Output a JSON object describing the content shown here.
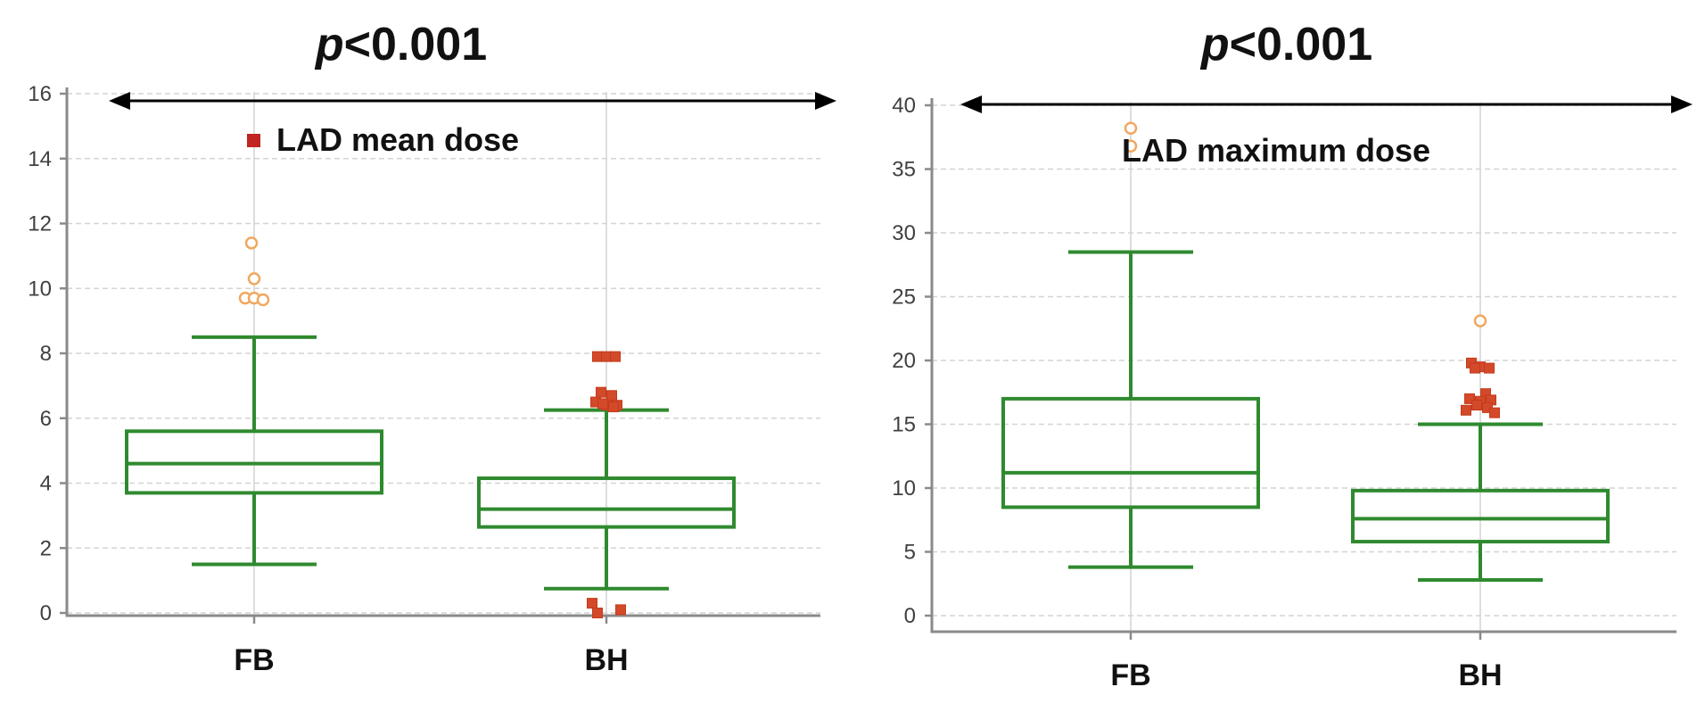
{
  "figure": {
    "panels_count": 2
  },
  "chart_data": [
    {
      "type": "box",
      "title": "p<0.001",
      "title_italic_part": "p",
      "title_rest": "<0.001",
      "legend_label": "LAD mean dose",
      "legend_marker": "filled-square",
      "ylim": [
        0,
        16
      ],
      "yticks": [
        0,
        2,
        4,
        6,
        8,
        10,
        12,
        14,
        16
      ],
      "categories": [
        "FB",
        "BH"
      ],
      "grid": true,
      "colors": {
        "box": "#2f8a2f",
        "outlier_open": "#f0a860",
        "outlier_filled": "#d24a2a",
        "legend_marker": "#c0251f"
      },
      "boxes": [
        {
          "name": "FB",
          "whisker_low": 1.5,
          "q1": 3.7,
          "median": 4.6,
          "q3": 5.6,
          "whisker_high": 8.5,
          "outliers_open": [
            11.4,
            10.3,
            9.7,
            9.7,
            9.65
          ],
          "outliers_filled": []
        },
        {
          "name": "BH",
          "whisker_low": 0.75,
          "q1": 2.65,
          "median": 3.2,
          "q3": 4.15,
          "whisker_high": 6.25,
          "outliers_open": [],
          "outliers_filled": [
            7.9,
            7.9,
            7.9,
            6.8,
            6.7,
            6.5,
            6.4,
            6.4,
            6.45,
            6.35,
            0.3,
            0.1,
            0.0
          ]
        }
      ],
      "comparison": "p<0.001"
    },
    {
      "type": "box",
      "title": "p<0.001",
      "title_italic_part": "p",
      "title_rest": "<0.001",
      "legend_label": "LAD maximum dose",
      "ylim": [
        0,
        40
      ],
      "yticks": [
        0,
        5,
        10,
        15,
        20,
        25,
        30,
        35,
        40
      ],
      "categories": [
        "FB",
        "BH"
      ],
      "grid": true,
      "colors": {
        "box": "#2f8a2f",
        "outlier_open": "#f0a860",
        "outlier_filled": "#d24a2a"
      },
      "boxes": [
        {
          "name": "FB",
          "whisker_low": 3.8,
          "q1": 8.5,
          "median": 11.2,
          "q3": 17.0,
          "whisker_high": 28.5,
          "outliers_open": [
            38.2,
            36.8
          ],
          "outliers_filled": []
        },
        {
          "name": "BH",
          "whisker_low": 2.8,
          "q1": 5.8,
          "median": 7.6,
          "q3": 9.8,
          "whisker_high": 15.0,
          "outliers_open": [
            23.1
          ],
          "outliers_filled": [
            19.8,
            19.5,
            19.4,
            19.4,
            17.4,
            17.0,
            16.9,
            16.8,
            16.5,
            16.3,
            16.1,
            15.9
          ]
        }
      ],
      "comparison": "p<0.001"
    }
  ]
}
